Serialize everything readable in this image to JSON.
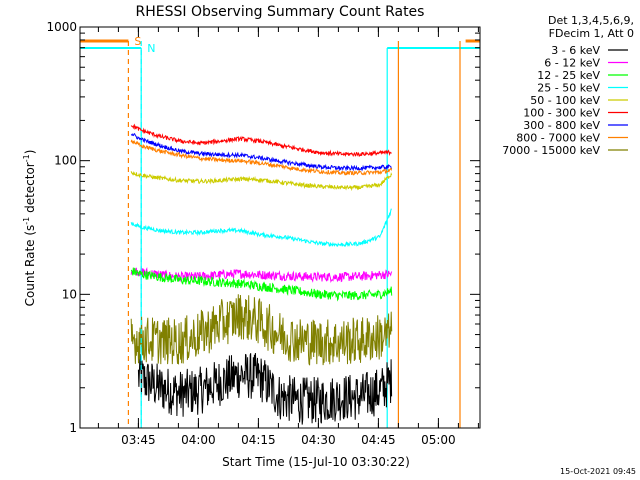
{
  "chart_data": {
    "type": "line",
    "title": "RHESSI Observing Summary Count Rates",
    "xlabel": "Start Time (15-Jul-10 03:30:22)",
    "ylabel": "Count Rate (s⁻¹ detector⁻¹)",
    "ylabel_parts": {
      "a": "Count Rate (s",
      "b": "-1",
      "c": " detector",
      "d": "-1",
      "e": ")"
    },
    "yscale": "log",
    "ylim": [
      1,
      1000
    ],
    "xlim_min": [
      0,
      100
    ],
    "x_unit": "minutes after 03:30:22",
    "x_ticks": [
      {
        "min": 14.6,
        "label": "03:45"
      },
      {
        "min": 29.6,
        "label": "04:00"
      },
      {
        "min": 44.6,
        "label": "04:15"
      },
      {
        "min": 59.6,
        "label": "04:30"
      },
      {
        "min": 74.6,
        "label": "04:45"
      },
      {
        "min": 89.6,
        "label": "05:00"
      }
    ],
    "y_ticks": [
      {
        "value": 1,
        "label": "1"
      },
      {
        "value": 10,
        "label": "10"
      },
      {
        "value": 100,
        "label": "100"
      },
      {
        "value": 1000,
        "label": "1000"
      }
    ],
    "legend_header": [
      "Det 1,3,4,5,6,9,",
      "FDecim 1, Att 0"
    ],
    "series": [
      {
        "name": "3 - 6 keV",
        "color": "#000000",
        "x": [
          14.6,
          20,
          25,
          30,
          35,
          40,
          45,
          50,
          55,
          60,
          65,
          70,
          75,
          78
        ],
        "y": [
          2.4,
          2.0,
          1.8,
          1.9,
          2.2,
          2.5,
          2.4,
          1.7,
          1.6,
          1.6,
          1.7,
          1.7,
          1.9,
          2.3
        ]
      },
      {
        "name": "6 - 12 keV",
        "color": "#ff00ff",
        "x": [
          12.8,
          15,
          20,
          25,
          30,
          35,
          40,
          45,
          50,
          55,
          60,
          65,
          70,
          75,
          78
        ],
        "y": [
          15.2,
          14.8,
          14.0,
          13.5,
          13.6,
          14.0,
          14.3,
          14.0,
          13.8,
          13.6,
          13.5,
          13.5,
          13.6,
          14.0,
          14.2
        ]
      },
      {
        "name": "12 - 25 keV",
        "color": "#00ff00",
        "x": [
          12.8,
          15,
          20,
          25,
          30,
          35,
          40,
          45,
          50,
          55,
          60,
          65,
          70,
          75,
          78
        ],
        "y": [
          15.0,
          14.2,
          13.5,
          12.8,
          12.6,
          12.3,
          12.0,
          11.5,
          11.0,
          10.5,
          10.0,
          9.8,
          9.8,
          10.0,
          10.6
        ]
      },
      {
        "name": "25 - 50 keV",
        "color": "#00ffff",
        "x": [
          12.8,
          15,
          20,
          25,
          30,
          35,
          40,
          45,
          50,
          55,
          60,
          65,
          70,
          75,
          78
        ],
        "y": [
          34,
          32,
          30,
          29,
          29,
          30,
          30,
          28,
          27,
          25.5,
          24,
          23.5,
          24,
          27,
          44
        ]
      },
      {
        "name": "50 - 100 keV",
        "color": "#cccc00",
        "x": [
          12.8,
          15,
          20,
          25,
          30,
          35,
          40,
          45,
          50,
          55,
          60,
          65,
          70,
          75,
          78
        ],
        "y": [
          82,
          78,
          74,
          71,
          70,
          71,
          73,
          72,
          69,
          66,
          64,
          63,
          63,
          66,
          80
        ]
      },
      {
        "name": "100 - 300 keV",
        "color": "#ff0000",
        "x": [
          12.8,
          15,
          20,
          25,
          30,
          35,
          40,
          45,
          50,
          55,
          60,
          65,
          70,
          75,
          78
        ],
        "y": [
          185,
          170,
          152,
          140,
          135,
          140,
          146,
          140,
          130,
          122,
          115,
          112,
          112,
          114,
          116
        ]
      },
      {
        "name": "300 - 800 keV",
        "color": "#0000ff",
        "x": [
          12.8,
          15,
          20,
          25,
          30,
          35,
          40,
          45,
          50,
          55,
          60,
          65,
          70,
          75,
          78
        ],
        "y": [
          160,
          145,
          130,
          118,
          113,
          111,
          110,
          105,
          99,
          94,
          90,
          88,
          88,
          89,
          90
        ]
      },
      {
        "name": "800 - 7000 keV",
        "color": "#ff8000",
        "x": [
          12.8,
          15,
          20,
          25,
          30,
          35,
          40,
          45,
          50,
          55,
          60,
          65,
          70,
          75,
          78
        ],
        "y": [
          142,
          130,
          118,
          110,
          104,
          101,
          100,
          96,
          91,
          86,
          83,
          81,
          81,
          82,
          85
        ]
      },
      {
        "name": "7000 - 15000 keV",
        "color": "#808000",
        "x": [
          12.8,
          15,
          20,
          25,
          30,
          35,
          40,
          45,
          50,
          55,
          60,
          65,
          70,
          75,
          78
        ],
        "y": [
          4.5,
          4.6,
          4.5,
          4.4,
          5.0,
          6.0,
          7.0,
          6.2,
          5.0,
          4.5,
          4.4,
          4.4,
          4.5,
          4.8,
          5.0
        ]
      }
    ],
    "flag_markers": [
      {
        "label": "S",
        "color": "#ff8000",
        "x": 12.1,
        "style": "dashed"
      },
      {
        "label": "N",
        "color": "#00ffff",
        "x": 15.3,
        "style": "dashed"
      },
      {
        "label": "",
        "color": "#ff8000",
        "x": 79.6,
        "style": "solid"
      },
      {
        "label": "",
        "color": "#ff8000",
        "x": 95.0,
        "style": "solid"
      }
    ],
    "night_spans": [
      {
        "color": "#00ffff",
        "x0": 0,
        "x1": 15.3
      },
      {
        "color": "#00ffff",
        "x0": 76.8,
        "x1": 100
      }
    ],
    "saa_spans": [
      {
        "color": "#ff8000",
        "x0": 0,
        "x1": 12.1
      },
      {
        "color": "#ff8000",
        "x0": 96.4,
        "x1": 100
      }
    ],
    "grid": false,
    "legend_position": "right"
  },
  "footer_date": "15-Oct-2021 09:45"
}
